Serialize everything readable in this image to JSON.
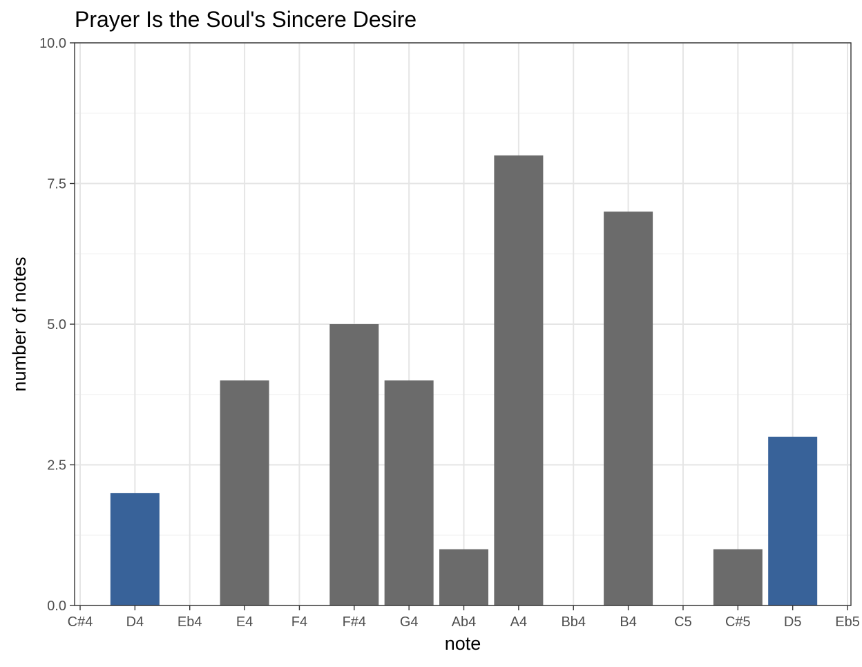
{
  "chart_data": {
    "type": "bar",
    "title": "Prayer Is the Soul's Sincere Desire",
    "xlabel": "note",
    "ylabel": "number of notes",
    "categories": [
      "C#4",
      "D4",
      "Eb4",
      "E4",
      "F4",
      "F#4",
      "G4",
      "Ab4",
      "A4",
      "Bb4",
      "B4",
      "C5",
      "C#5",
      "D5",
      "Eb5"
    ],
    "values": [
      0,
      2,
      0,
      4,
      0,
      5,
      4,
      1,
      8,
      0,
      7,
      0,
      1,
      3,
      0
    ],
    "highlight": [
      false,
      true,
      false,
      false,
      false,
      false,
      false,
      false,
      false,
      false,
      false,
      false,
      false,
      true,
      false
    ],
    "ylim": [
      0,
      10
    ],
    "yticks": [
      0,
      2.5,
      5,
      7.5,
      10
    ],
    "ytick_labels": [
      "0.0",
      "2.5",
      "5.0",
      "7.5",
      "10.0"
    ],
    "grid": true,
    "legend": "none",
    "colors": {
      "bar": "#6b6b6b",
      "highlight": "#386299",
      "grid_major": "#e5e5e5",
      "grid_minor": "#f2f2f2",
      "panel_border": "#333333",
      "text": "#000000",
      "tick_text": "#4d4d4d"
    }
  }
}
